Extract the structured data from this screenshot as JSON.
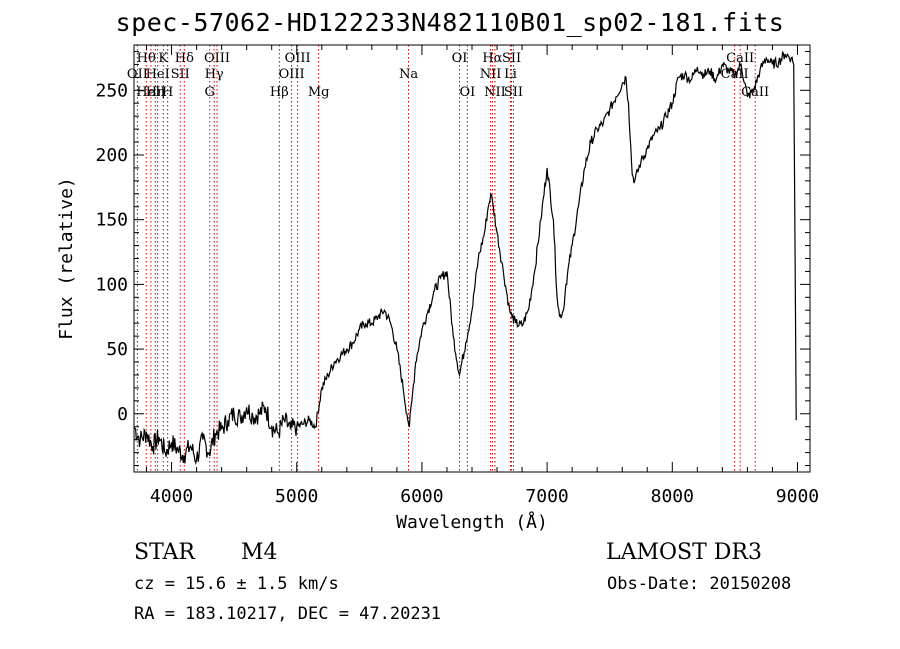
{
  "chart_data": {
    "type": "line",
    "title": "spec-57062-HD122233N482110B01_sp02-181.fits",
    "xlabel": "Wavelength (Å)",
    "ylabel": "Flux (relative)",
    "xlim": [
      3700,
      9100
    ],
    "ylim": [
      -45,
      285
    ],
    "xticks": [
      4000,
      5000,
      6000,
      7000,
      8000,
      9000
    ],
    "yticks": [
      0,
      50,
      100,
      150,
      200,
      250
    ],
    "xtick_labels": [
      "4000",
      "5000",
      "6000",
      "7000",
      "8000",
      "9000"
    ],
    "ytick_labels": [
      "0",
      "50",
      "100",
      "150",
      "200",
      "250"
    ],
    "series": [
      {
        "name": "flux",
        "x": [
          3700,
          3750,
          3800,
          3850,
          3900,
          3950,
          4000,
          4050,
          4100,
          4150,
          4200,
          4250,
          4300,
          4350,
          4400,
          4450,
          4500,
          4550,
          4600,
          4650,
          4700,
          4750,
          4800,
          4850,
          4900,
          4950,
          5000,
          5050,
          5100,
          5150,
          5200,
          5250,
          5300,
          5350,
          5400,
          5450,
          5500,
          5550,
          5600,
          5650,
          5700,
          5750,
          5800,
          5850,
          5880,
          5900,
          5920,
          5950,
          6000,
          6050,
          6100,
          6150,
          6200,
          6250,
          6300,
          6350,
          6400,
          6450,
          6500,
          6530,
          6550,
          6570,
          6600,
          6650,
          6700,
          6720,
          6750,
          6800,
          6850,
          6900,
          6950,
          7000,
          7050,
          7080,
          7100,
          7130,
          7150,
          7200,
          7250,
          7300,
          7350,
          7400,
          7450,
          7500,
          7550,
          7600,
          7630,
          7650,
          7680,
          7700,
          7750,
          7800,
          7850,
          7900,
          7950,
          8000,
          8050,
          8100,
          8150,
          8200,
          8250,
          8300,
          8350,
          8400,
          8450,
          8500,
          8550,
          8600,
          8650,
          8700,
          8750,
          8800,
          8850,
          8900,
          8950,
          8970,
          8990
        ],
        "y": [
          -10,
          -20,
          -15,
          -25,
          -18,
          -30,
          -22,
          -28,
          -32,
          -25,
          -35,
          -20,
          -30,
          -15,
          -12,
          -5,
          0,
          -3,
          5,
          -2,
          0,
          5,
          -10,
          -15,
          -5,
          -12,
          -10,
          -8,
          -5,
          -10,
          20,
          30,
          40,
          45,
          50,
          55,
          65,
          70,
          70,
          75,
          80,
          70,
          50,
          20,
          0,
          -10,
          10,
          40,
          65,
          80,
          95,
          105,
          110,
          60,
          30,
          55,
          80,
          120,
          140,
          160,
          170,
          160,
          140,
          110,
          80,
          75,
          70,
          68,
          80,
          110,
          150,
          190,
          150,
          90,
          75,
          80,
          100,
          130,
          160,
          190,
          210,
          220,
          225,
          235,
          245,
          255,
          260,
          240,
          185,
          180,
          195,
          205,
          215,
          220,
          230,
          240,
          260,
          262,
          258,
          268,
          262,
          265,
          258,
          270,
          265,
          262,
          270,
          245,
          250,
          265,
          275,
          270,
          272,
          278,
          275,
          270,
          -5
        ]
      }
    ],
    "lines": [
      {
        "name": "Hθ",
        "wl": 3798,
        "row": 1
      },
      {
        "name": "OII",
        "wl": 3727,
        "row": 2
      },
      {
        "name": "HeII",
        "wl": 3835,
        "row": 3
      },
      {
        "name": "K",
        "wl": 3934,
        "row": 1
      },
      {
        "name": "HeI",
        "wl": 3889,
        "row": 2
      },
      {
        "name": "Hη",
        "wl": 3870,
        "row": 3
      },
      {
        "name": "Hδ",
        "wl": 4102,
        "row": 1
      },
      {
        "name": "SII",
        "wl": 4069,
        "row": 2
      },
      {
        "name": "H",
        "wl": 3969,
        "row": 3
      },
      {
        "name": "OIII",
        "wl": 4363,
        "row": 1
      },
      {
        "name": "Hγ",
        "wl": 4340,
        "row": 2
      },
      {
        "name": "G",
        "wl": 4305,
        "row": 3
      },
      {
        "name": "OIII",
        "wl": 5007,
        "row": 1
      },
      {
        "name": "OIII",
        "wl": 4959,
        "row": 2
      },
      {
        "name": "Hβ",
        "wl": 4861,
        "row": 3
      },
      {
        "name": "Mg",
        "wl": 5175,
        "row": 3
      },
      {
        "name": "Na",
        "wl": 5893,
        "row": 2
      },
      {
        "name": "OI",
        "wl": 6300,
        "row": 1
      },
      {
        "name": "OI",
        "wl": 6363,
        "row": 3
      },
      {
        "name": "Hα",
        "wl": 6563,
        "row": 1
      },
      {
        "name": "NII",
        "wl": 6548,
        "row": 2
      },
      {
        "name": "NII",
        "wl": 6583,
        "row": 3
      },
      {
        "name": "SII",
        "wl": 6716,
        "row": 1
      },
      {
        "name": "Li",
        "wl": 6708,
        "row": 2
      },
      {
        "name": "SII",
        "wl": 6731,
        "row": 3
      },
      {
        "name": "CaII",
        "wl": 8542,
        "row": 1
      },
      {
        "name": "CaII",
        "wl": 8498,
        "row": 2
      },
      {
        "name": "CaII",
        "wl": 8662,
        "row": 3
      }
    ]
  },
  "info": {
    "star_type": "STAR",
    "subclass": "M4",
    "survey": "LAMOST DR3",
    "cz": "cz = 15.6 ± 1.5 km/s",
    "obs_date": "Obs-Date: 20150208",
    "radec": "RA = 183.10217, DEC =  47.20231"
  },
  "colors": {
    "line": "#000000",
    "marker": "#cc0000"
  }
}
